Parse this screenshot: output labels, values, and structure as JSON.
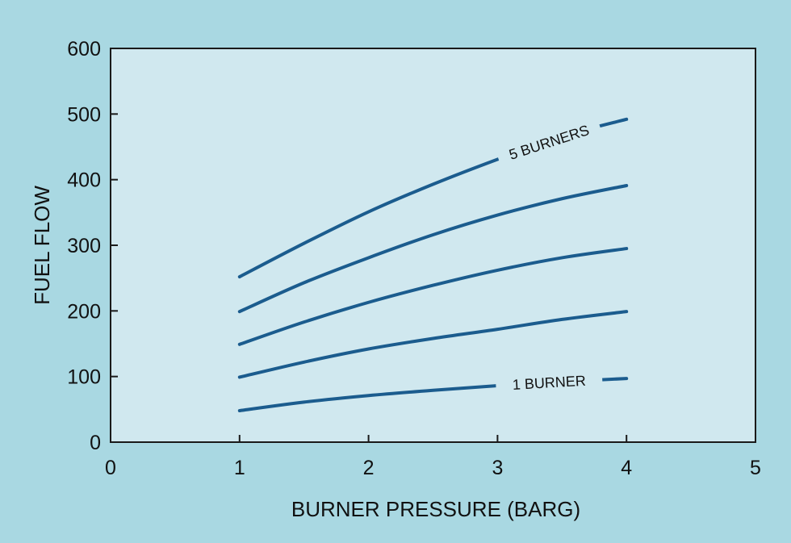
{
  "colors": {
    "page_background": "#a9d8e2",
    "plot_background": "#d0e8ef",
    "series": "#1b5c8e",
    "axis": "#1a1a1a"
  },
  "chart_data": {
    "type": "line",
    "title": "",
    "xlabel": "BURNER PRESSURE (BARG)",
    "ylabel": "FUEL FLOW",
    "xlim": [
      0,
      5
    ],
    "ylim": [
      0,
      600
    ],
    "x_ticks": [
      "0",
      "1",
      "2",
      "3",
      "4",
      "5"
    ],
    "y_ticks": [
      "0",
      "100",
      "200",
      "300",
      "400",
      "500",
      "600"
    ],
    "grid": false,
    "legend": "none",
    "x": [
      1,
      1.5,
      2,
      2.5,
      3,
      3.5,
      4
    ],
    "series": [
      {
        "name": "1 BURNER",
        "values": [
          48,
          61,
          71,
          79,
          86,
          92,
          97
        ]
      },
      {
        "values": [
          99,
          122,
          142,
          158,
          172,
          187,
          199
        ]
      },
      {
        "values": [
          149,
          183,
          213,
          239,
          262,
          281,
          295
        ]
      },
      {
        "values": [
          199,
          243,
          281,
          316,
          346,
          371,
          391
        ]
      },
      {
        "name": "5 BURNERS",
        "values": [
          252,
          303,
          351,
          393,
          431,
          466,
          492
        ]
      }
    ]
  }
}
